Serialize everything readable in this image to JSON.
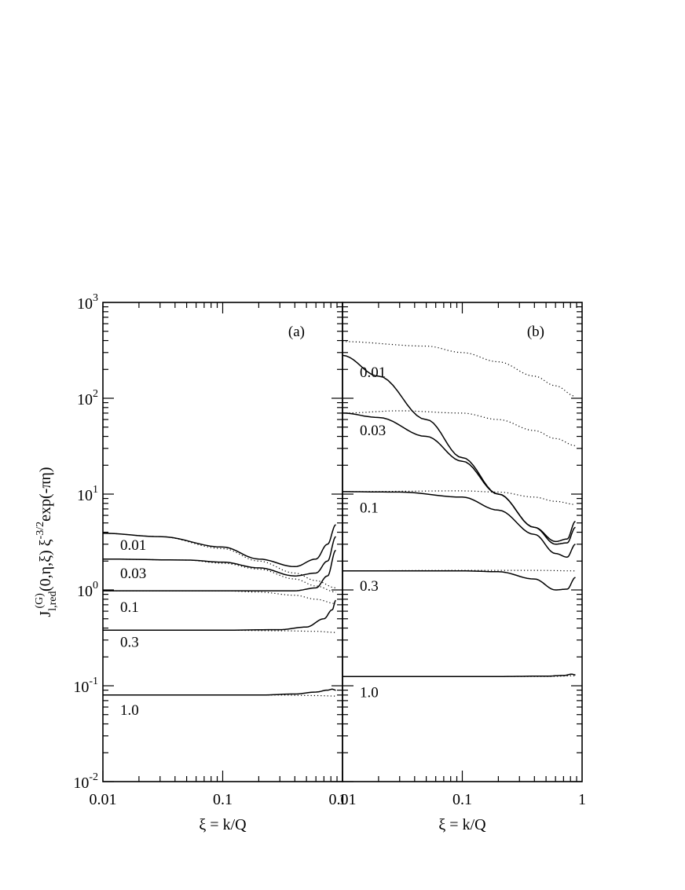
{
  "chart_data": {
    "type": "line",
    "xscale": "log",
    "yscale": "log",
    "xlim": [
      0.01,
      1
    ],
    "ylim": [
      0.01,
      1000
    ],
    "ylabel": "J",
    "ylabel_sup": "(G)",
    "ylabel_sub": "l,red",
    "ylabel_args": "(0,η,ξ) ξ",
    "ylabel_exp": "-3/2",
    "ylabel_tail": "exp(-πη)",
    "x_tick_labels": [
      "0.01",
      "0.1",
      "1"
    ],
    "y_tick_labels": [
      {
        "mant": "10",
        "exp": "-2"
      },
      {
        "mant": "10",
        "exp": "-1"
      },
      {
        "mant": "10",
        "exp": "0"
      },
      {
        "mant": "10",
        "exp": "1"
      },
      {
        "mant": "10",
        "exp": "2"
      },
      {
        "mant": "10",
        "exp": "3"
      }
    ],
    "panels": [
      {
        "panel_label": "(a)",
        "xlabel": "ξ = k/Q",
        "series": [
          {
            "name": "0.01",
            "solid": [
              [
                0.01,
                3.9
              ],
              [
                0.03,
                3.6
              ],
              [
                0.1,
                2.8
              ],
              [
                0.2,
                2.1
              ],
              [
                0.4,
                1.75
              ],
              [
                0.6,
                2.1
              ],
              [
                0.75,
                3.0
              ],
              [
                0.88,
                4.8
              ]
            ],
            "dotted": [
              [
                0.01,
                3.9
              ],
              [
                0.03,
                3.6
              ],
              [
                0.1,
                2.7
              ],
              [
                0.2,
                2.0
              ],
              [
                0.4,
                1.5
              ],
              [
                0.6,
                1.25
              ],
              [
                0.88,
                1.05
              ]
            ]
          },
          {
            "name": "0.03",
            "solid": [
              [
                0.01,
                2.1
              ],
              [
                0.05,
                2.05
              ],
              [
                0.1,
                1.95
              ],
              [
                0.2,
                1.7
              ],
              [
                0.4,
                1.4
              ],
              [
                0.6,
                1.5
              ],
              [
                0.75,
                2.0
              ],
              [
                0.88,
                3.6
              ]
            ],
            "dotted": [
              [
                0.01,
                2.1
              ],
              [
                0.05,
                2.05
              ],
              [
                0.1,
                1.9
              ],
              [
                0.2,
                1.65
              ],
              [
                0.4,
                1.3
              ],
              [
                0.6,
                1.1
              ],
              [
                0.88,
                0.95
              ]
            ]
          },
          {
            "name": "0.1",
            "solid": [
              [
                0.01,
                0.98
              ],
              [
                0.1,
                0.98
              ],
              [
                0.2,
                0.98
              ],
              [
                0.4,
                0.98
              ],
              [
                0.6,
                1.05
              ],
              [
                0.75,
                1.4
              ],
              [
                0.88,
                2.6
              ]
            ],
            "dotted": [
              [
                0.01,
                0.98
              ],
              [
                0.1,
                0.98
              ],
              [
                0.2,
                0.95
              ],
              [
                0.4,
                0.88
              ],
              [
                0.6,
                0.8
              ],
              [
                0.88,
                0.72
              ]
            ]
          },
          {
            "name": "0.3",
            "solid": [
              [
                0.01,
                0.38
              ],
              [
                0.1,
                0.38
              ],
              [
                0.3,
                0.385
              ],
              [
                0.5,
                0.41
              ],
              [
                0.7,
                0.5
              ],
              [
                0.82,
                0.62
              ],
              [
                0.88,
                0.78
              ]
            ],
            "dotted": [
              [
                0.01,
                0.38
              ],
              [
                0.1,
                0.38
              ],
              [
                0.3,
                0.375
              ],
              [
                0.6,
                0.37
              ],
              [
                0.88,
                0.36
              ]
            ]
          },
          {
            "name": "1.0",
            "solid": [
              [
                0.01,
                0.08
              ],
              [
                0.2,
                0.08
              ],
              [
                0.4,
                0.082
              ],
              [
                0.6,
                0.086
              ],
              [
                0.75,
                0.09
              ],
              [
                0.82,
                0.092
              ],
              [
                0.88,
                0.09
              ]
            ],
            "dotted": [
              [
                0.01,
                0.08
              ],
              [
                0.3,
                0.08
              ],
              [
                0.6,
                0.079
              ],
              [
                0.88,
                0.078
              ]
            ]
          }
        ]
      },
      {
        "panel_label": "(b)",
        "xlabel": "ξ = k/Q",
        "series": [
          {
            "name": "0.01",
            "solid": [
              [
                0.01,
                280
              ],
              [
                0.02,
                170
              ],
              [
                0.05,
                60
              ],
              [
                0.1,
                24
              ],
              [
                0.2,
                10
              ],
              [
                0.4,
                4.5
              ],
              [
                0.6,
                3.2
              ],
              [
                0.75,
                3.4
              ],
              [
                0.88,
                5.2
              ]
            ],
            "dotted": [
              [
                0.01,
                390
              ],
              [
                0.05,
                350
              ],
              [
                0.1,
                300
              ],
              [
                0.2,
                240
              ],
              [
                0.4,
                170
              ],
              [
                0.6,
                135
              ],
              [
                0.88,
                105
              ]
            ]
          },
          {
            "name": "0.03",
            "solid": [
              [
                0.01,
                70
              ],
              [
                0.02,
                63
              ],
              [
                0.05,
                40
              ],
              [
                0.1,
                22
              ],
              [
                0.2,
                10
              ],
              [
                0.4,
                4.5
              ],
              [
                0.6,
                3.0
              ],
              [
                0.75,
                3.1
              ],
              [
                0.88,
                4.5
              ]
            ],
            "dotted": [
              [
                0.01,
                70
              ],
              [
                0.03,
                74
              ],
              [
                0.1,
                70
              ],
              [
                0.2,
                60
              ],
              [
                0.4,
                46
              ],
              [
                0.6,
                38
              ],
              [
                0.88,
                32
              ]
            ]
          },
          {
            "name": "0.1",
            "solid": [
              [
                0.01,
                10.6
              ],
              [
                0.03,
                10.5
              ],
              [
                0.1,
                9.3
              ],
              [
                0.2,
                6.8
              ],
              [
                0.4,
                3.8
              ],
              [
                0.6,
                2.4
              ],
              [
                0.75,
                2.2
              ],
              [
                0.88,
                3.0
              ]
            ],
            "dotted": [
              [
                0.01,
                10.6
              ],
              [
                0.1,
                10.8
              ],
              [
                0.2,
                10.5
              ],
              [
                0.4,
                9.3
              ],
              [
                0.6,
                8.4
              ],
              [
                0.88,
                7.8
              ]
            ]
          },
          {
            "name": "0.3",
            "solid": [
              [
                0.01,
                1.58
              ],
              [
                0.1,
                1.58
              ],
              [
                0.2,
                1.55
              ],
              [
                0.4,
                1.3
              ],
              [
                0.6,
                1.0
              ],
              [
                0.75,
                1.02
              ],
              [
                0.88,
                1.35
              ]
            ],
            "dotted": [
              [
                0.01,
                1.58
              ],
              [
                0.1,
                1.6
              ],
              [
                0.4,
                1.6
              ],
              [
                0.88,
                1.58
              ]
            ]
          },
          {
            "name": "1.0",
            "solid": [
              [
                0.01,
                0.125
              ],
              [
                0.2,
                0.125
              ],
              [
                0.5,
                0.126
              ],
              [
                0.7,
                0.128
              ],
              [
                0.82,
                0.132
              ],
              [
                0.88,
                0.13
              ]
            ],
            "dotted": [
              [
                0.01,
                0.125
              ],
              [
                0.5,
                0.125
              ],
              [
                0.88,
                0.127
              ]
            ]
          }
        ]
      }
    ]
  },
  "curve_label_points": [
    [
      [
        0.01,
        3.0
      ],
      [
        0.01,
        1.52
      ],
      [
        0.01,
        0.67
      ],
      [
        0.01,
        0.29
      ],
      [
        0.01,
        0.057
      ]
    ],
    [
      [
        0.01,
        190
      ],
      [
        0.01,
        47
      ],
      [
        0.01,
        7.3
      ],
      [
        0.01,
        1.12
      ],
      [
        0.01,
        0.087
      ]
    ]
  ]
}
